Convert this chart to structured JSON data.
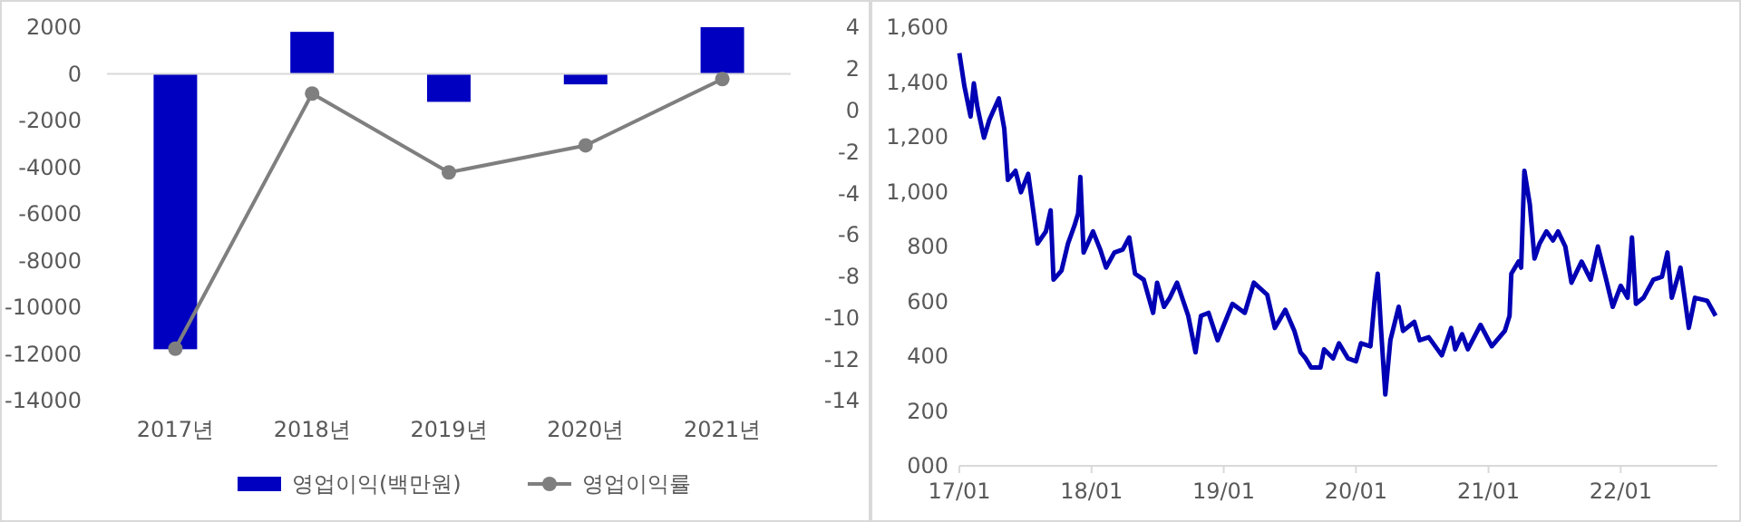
{
  "chart_data": [
    {
      "type": "bar",
      "categories": [
        "2017년",
        "2018년",
        "2019년",
        "2020년",
        "2021년"
      ],
      "series": [
        {
          "name": "영업이익(백만원)",
          "type": "bar",
          "color": "#0000c0",
          "values": [
            -11800,
            1800,
            -1200,
            -450,
            2000
          ]
        },
        {
          "name": "영업이익률",
          "type": "line",
          "axis": "y2",
          "color": "#7f7f7f",
          "marker": "circle",
          "values": [
            -11.5,
            0.8,
            -3.0,
            -1.7,
            1.5
          ]
        }
      ],
      "ylim": [
        -14000,
        2000
      ],
      "yticks": [
        -14000,
        -12000,
        -10000,
        -8000,
        -6000,
        -4000,
        -2000,
        0,
        2000
      ],
      "y2lim": [
        -14,
        4
      ],
      "y2ticks": [
        -14,
        -12,
        -10,
        -8,
        -6,
        -4,
        -2,
        0,
        2,
        4
      ],
      "ref_lines": [
        {
          "axis": "y",
          "value": 0,
          "color": "#d9d9d9"
        }
      ],
      "legend": "bottom",
      "grid": false
    },
    {
      "type": "line",
      "color": "#0000b4",
      "x": [
        "2017-01-01",
        "2017-01-15",
        "2017-02-01",
        "2017-02-10",
        "2017-02-20",
        "2017-03-10",
        "2017-03-25",
        "2017-04-20",
        "2017-05-05",
        "2017-05-15",
        "2017-06-05",
        "2017-06-20",
        "2017-07-10",
        "2017-07-25",
        "2017-08-05",
        "2017-08-28",
        "2017-09-10",
        "2017-09-18",
        "2017-10-10",
        "2017-10-28",
        "2017-11-15",
        "2017-11-25",
        "2017-12-01",
        "2017-12-10",
        "2018-01-05",
        "2018-01-25",
        "2018-02-10",
        "2018-03-05",
        "2018-03-28",
        "2018-04-15",
        "2018-05-01",
        "2018-05-25",
        "2018-06-20",
        "2018-07-01",
        "2018-07-20",
        "2018-08-05",
        "2018-08-25",
        "2018-09-25",
        "2018-10-15",
        "2018-10-30",
        "2018-11-20",
        "2018-12-15",
        "2019-01-25",
        "2019-02-28",
        "2019-03-25",
        "2019-05-01",
        "2019-05-22",
        "2019-06-20",
        "2019-07-15",
        "2019-08-01",
        "2019-08-15",
        "2019-08-30",
        "2019-09-25",
        "2019-10-05",
        "2019-10-30",
        "2019-11-15",
        "2019-12-10",
        "2020-01-01",
        "2020-01-15",
        "2020-02-10",
        "2020-02-22",
        "2020-03-01",
        "2020-03-10",
        "2020-03-22",
        "2020-04-05",
        "2020-04-28",
        "2020-05-10",
        "2020-06-10",
        "2020-06-25",
        "2020-07-20",
        "2020-08-25",
        "2020-09-20",
        "2020-10-01",
        "2020-10-20",
        "2020-11-05",
        "2020-12-10",
        "2021-01-10",
        "2021-02-15",
        "2021-02-28",
        "2021-03-05",
        "2021-03-25",
        "2021-04-01",
        "2021-04-10",
        "2021-04-25",
        "2021-05-08",
        "2021-05-22",
        "2021-06-10",
        "2021-06-28",
        "2021-07-12",
        "2021-08-01",
        "2021-08-18",
        "2021-09-15",
        "2021-10-10",
        "2021-10-30",
        "2021-11-20",
        "2021-12-10",
        "2022-01-01",
        "2022-01-20",
        "2022-02-01",
        "2022-02-12",
        "2022-03-05",
        "2022-04-01",
        "2022-04-25",
        "2022-05-10",
        "2022-05-22",
        "2022-06-15",
        "2022-07-08",
        "2022-07-25",
        "2022-08-28",
        "2022-09-20"
      ],
      "values": [
        1505,
        1384,
        1274,
        1395,
        1307,
        1197,
        1263,
        1340,
        1230,
        1043,
        1076,
        998,
        1065,
        921,
        811,
        855,
        932,
        679,
        712,
        811,
        877,
        921,
        1054,
        778,
        855,
        789,
        723,
        778,
        789,
        833,
        701,
        679,
        558,
        668,
        580,
        613,
        668,
        547,
        414,
        547,
        558,
        458,
        591,
        558,
        668,
        624,
        503,
        569,
        492,
        414,
        392,
        359,
        359,
        425,
        392,
        447,
        392,
        381,
        447,
        436,
        613,
        701,
        503,
        260,
        458,
        580,
        492,
        525,
        458,
        469,
        403,
        503,
        425,
        480,
        425,
        514,
        436,
        492,
        547,
        701,
        745,
        723,
        1076,
        954,
        756,
        811,
        855,
        822,
        855,
        800,
        668,
        745,
        679,
        800,
        690,
        580,
        657,
        613,
        833,
        591,
        613,
        679,
        690,
        778,
        613,
        723,
        503,
        613,
        602,
        547
      ],
      "xlim": [
        "2017-01-01",
        "2022-09-25"
      ],
      "xticks": [
        {
          "value": "2017-01-01",
          "label": "17/01"
        },
        {
          "value": "2018-01-01",
          "label": "18/01"
        },
        {
          "value": "2019-01-01",
          "label": "19/01"
        },
        {
          "value": "2020-01-01",
          "label": "20/01"
        },
        {
          "value": "2021-01-01",
          "label": "21/01"
        },
        {
          "value": "2022-01-01",
          "label": "22/01"
        }
      ],
      "ylim": [
        0,
        1600
      ],
      "yticks": [
        {
          "value": 0,
          "label": "000"
        },
        {
          "value": 200,
          "label": "200"
        },
        {
          "value": 400,
          "label": "400"
        },
        {
          "value": 600,
          "label": "600"
        },
        {
          "value": 800,
          "label": "800"
        },
        {
          "value": 1000,
          "label": "1,000"
        },
        {
          "value": 1200,
          "label": "1,200"
        },
        {
          "value": 1400,
          "label": "1,400"
        },
        {
          "value": 1600,
          "label": "1,600"
        }
      ],
      "grid": false
    }
  ]
}
